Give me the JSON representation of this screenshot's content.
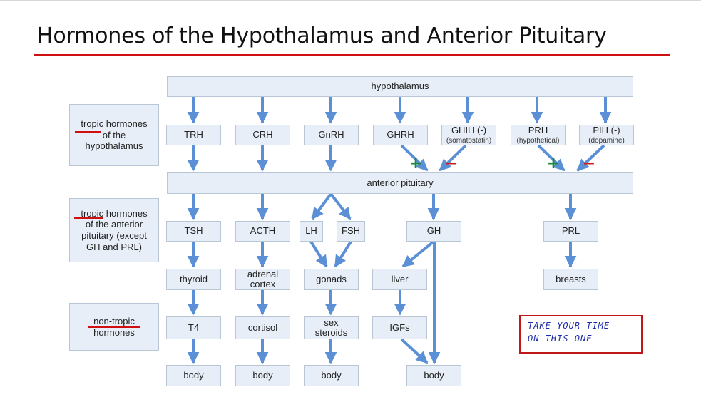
{
  "title": "Hormones of the Hypothalamus and Anterior Pituitary",
  "side_labels": {
    "hypo": {
      "l1": "tropic hormones",
      "l2": "of the",
      "l3": "hypothalamus"
    },
    "ant": {
      "l1": "tropic hormones",
      "l2": "of the anterior",
      "l3": "pituitary (except",
      "l4": "GH and PRL)"
    },
    "nontropic": {
      "l1": "non-tropic",
      "l2": "hormones"
    }
  },
  "bars": {
    "hypothalamus": "hypothalamus",
    "anterior_pituitary": "anterior pituitary"
  },
  "row_hypothalamic": {
    "trh": "TRH",
    "crh": "CRH",
    "gnrh": "GnRH",
    "ghrh": "GHRH",
    "ghih": "GHIH (-)",
    "ghih_sub": "(somatostatin)",
    "prh": "PRH",
    "prh_sub": "(hypothetical)",
    "pih": "PIH (-)",
    "pih_sub": "(dopamine)"
  },
  "row_pituitary": {
    "tsh": "TSH",
    "acth": "ACTH",
    "lh": "LH",
    "fsh": "FSH",
    "gh": "GH",
    "prl": "PRL"
  },
  "row_targets": {
    "thyroid": "thyroid",
    "adrenal_1": "adrenal",
    "adrenal_2": "cortex",
    "gonads": "gonads",
    "liver": "liver",
    "breasts": "breasts"
  },
  "row_products": {
    "t4": "T4",
    "cortisol": "cortisol",
    "sex_1": "sex",
    "sex_2": "steroids",
    "igfs": "IGFs"
  },
  "row_body": {
    "body": "body"
  },
  "signs": {
    "plus": "+",
    "minus": "−"
  },
  "note": {
    "line1": "TAKE YOUR TIME",
    "line2": "ON THIS ONE"
  },
  "colors": {
    "arrow": "#5b8fd6",
    "box_fill": "#e7eef7",
    "box_border": "#b9c6d6",
    "underline": "#d01010",
    "plus": "#1a8a3a",
    "minus": "#d01818",
    "note_text": "#1a2aa8"
  }
}
